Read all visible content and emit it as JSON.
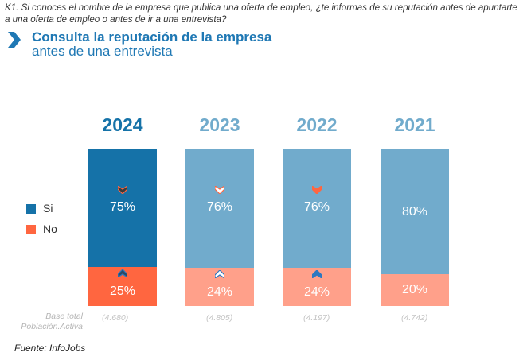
{
  "header": {
    "question": "K1. Si conoces el nombre de la empresa que publica una oferta de empleo, ¿te informas de su reputación antes de apuntarte a una oferta de empleo o antes de ir a una entrevista?",
    "title_bold": "Consulta la reputación de la empresa",
    "title_regular": "antes de una entrevista",
    "title_icon": "chevron-right-icon"
  },
  "colors": {
    "accent": "#1f78b4",
    "si_current": "#1572a8",
    "si_past": "#71abcc",
    "no_current": "#ff6640",
    "no_past": "#ffa08a",
    "year_current": "#1572a8",
    "year_past": "#71abcc",
    "arrow_down_dark": "#3b3b3b",
    "arrow_down_orange": "#ff6640",
    "arrow_up_dark": "#2a4a66",
    "arrow_up_blue": "#2d78c0"
  },
  "legend": [
    {
      "label": "Si",
      "color": "#1572a8"
    },
    {
      "label": "No",
      "color": "#ff6640"
    }
  ],
  "base": {
    "label_line1": "Base total",
    "label_line2": "Población.Activa"
  },
  "source": "Fuente: InfoJobs",
  "chart_data": {
    "type": "bar",
    "stacked": true,
    "normalized": true,
    "title": "Consulta la reputación de la empresa antes de una entrevista",
    "categories": [
      "2024",
      "2023",
      "2022",
      "2021"
    ],
    "series": [
      {
        "name": "Si",
        "values": [
          75,
          76,
          76,
          80
        ]
      },
      {
        "name": "No",
        "values": [
          25,
          24,
          24,
          20
        ]
      }
    ],
    "labels": {
      "Si": [
        "75%",
        "76%",
        "76%",
        "80%"
      ],
      "No": [
        "25%",
        "24%",
        "24%",
        "20%"
      ]
    },
    "trend_markers": {
      "Si": [
        "down",
        "down",
        "down",
        null
      ],
      "No": [
        "up",
        "up",
        "up",
        null
      ]
    },
    "base_sizes": [
      "(4.680)",
      "(4.805)",
      "(4.197)",
      "(4.742)"
    ],
    "highlighted_category": "2024",
    "ylim": [
      0,
      100
    ],
    "legend_position": "left",
    "xlabel": "",
    "ylabel": ""
  }
}
